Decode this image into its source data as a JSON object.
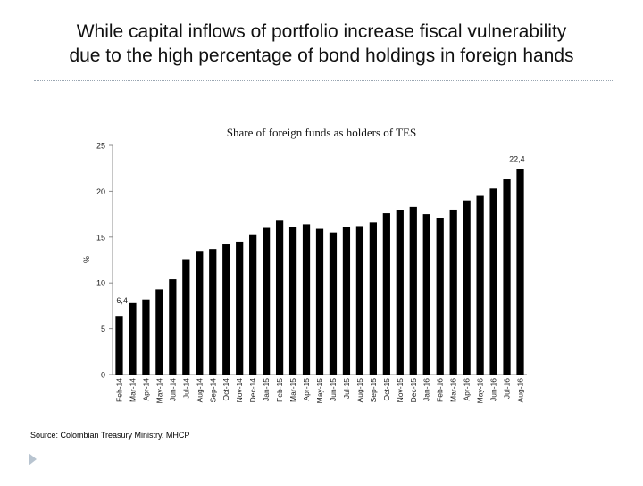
{
  "slide": {
    "title_line1": "While capital inflows of portfolio increase fiscal vulnerability",
    "title_line2": "due to the high percentage of bond holdings in foreign hands",
    "source": "Source: Colombian Treasury Ministry. MHCP"
  },
  "chart_data": {
    "type": "bar",
    "title": "Share of foreign funds as holders of TES",
    "xlabel": "",
    "ylabel": "%",
    "ylim": [
      0,
      25
    ],
    "yticks": [
      0,
      5,
      10,
      15,
      20,
      25
    ],
    "bar_color": "#000000",
    "categories": [
      "Feb-14",
      "Mar-14",
      "Apr-14",
      "May-14",
      "Jun-14",
      "Jul-14",
      "Aug-14",
      "Sep-14",
      "Oct-14",
      "Nov-14",
      "Dec-14",
      "Jan-15",
      "Feb-15",
      "Mar-15",
      "Apr-15",
      "May-15",
      "Jun-15",
      "Jul-15",
      "Aug-15",
      "Sep-15",
      "Oct-15",
      "Nov-15",
      "Dec-15",
      "Jan-16",
      "Feb-16",
      "Mar-16",
      "Apr-16",
      "May-16",
      "Jun-16",
      "Jul-16",
      "Aug-16"
    ],
    "values": [
      6.4,
      7.8,
      8.2,
      9.3,
      10.4,
      12.5,
      13.4,
      13.7,
      14.2,
      14.5,
      15.3,
      16.0,
      16.8,
      16.1,
      16.4,
      15.9,
      15.5,
      16.1,
      16.2,
      16.6,
      17.6,
      17.9,
      18.3,
      17.5,
      17.1,
      18.0,
      19.0,
      19.5,
      20.3,
      21.3,
      22.4
    ],
    "data_labels": [
      {
        "index": 0,
        "text": "6,4"
      },
      {
        "index": 30,
        "text": "22,4"
      }
    ]
  }
}
